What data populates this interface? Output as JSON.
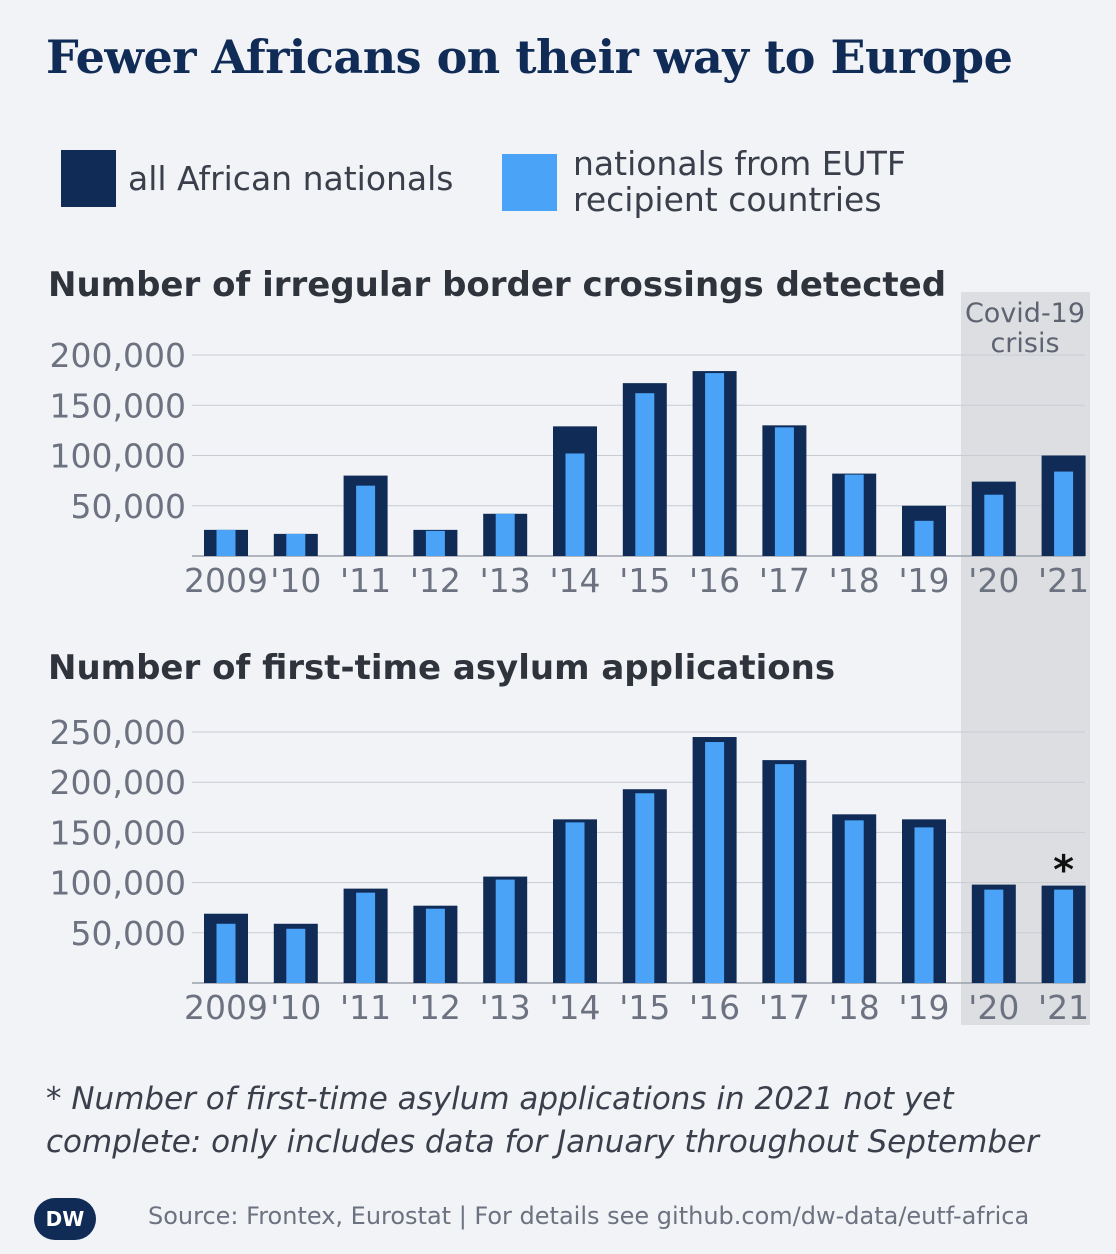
{
  "title": "Fewer Africans on their way to Europe",
  "colors": {
    "all": "#0f2b56",
    "eutf": "#4ba3f7",
    "covid_band": "#dcdee2",
    "grid": "#c8ccd3"
  },
  "legend": [
    {
      "label": "all African nationals",
      "color": "#0f2b56"
    },
    {
      "label": "nationals from EUTF\nrecipient countries",
      "color": "#4ba3f7"
    }
  ],
  "covid_label": [
    "Covid-19",
    "crisis"
  ],
  "chart_data": [
    {
      "type": "bar",
      "title": "Number of irregular border crossings detected",
      "categories": [
        "2009",
        "'10",
        "'11",
        "'12",
        "'13",
        "'14",
        "'15",
        "'16",
        "'17",
        "'18",
        "'19",
        "'20",
        "'21"
      ],
      "series": [
        {
          "name": "all African nationals",
          "values": [
            26000,
            22000,
            80000,
            26000,
            42000,
            129000,
            172000,
            184000,
            130000,
            82000,
            50000,
            74000,
            100000
          ]
        },
        {
          "name": "nationals from EUTF recipient countries",
          "values": [
            26000,
            22000,
            70000,
            25000,
            42000,
            102000,
            162000,
            182000,
            128000,
            81000,
            35000,
            61000,
            84000
          ]
        }
      ],
      "yticks": [
        50000,
        100000,
        150000,
        200000
      ],
      "ytick_labels": [
        "50,000",
        "100,000",
        "150,000",
        "200,000"
      ],
      "ylim": [
        0,
        200000
      ],
      "highlight": {
        "categories": [
          "'20",
          "'21"
        ],
        "label": "Covid-19 crisis"
      }
    },
    {
      "type": "bar",
      "title": "Number of first-time asylum applications",
      "categories": [
        "2009",
        "'10",
        "'11",
        "'12",
        "'13",
        "'14",
        "'15",
        "'16",
        "'17",
        "'18",
        "'19",
        "'20",
        "'21"
      ],
      "series": [
        {
          "name": "all African nationals",
          "values": [
            69000,
            59000,
            94000,
            77000,
            106000,
            163000,
            193000,
            245000,
            222000,
            168000,
            163000,
            98000,
            97000
          ]
        },
        {
          "name": "nationals from EUTF recipient countries",
          "values": [
            59000,
            54000,
            90000,
            74000,
            103000,
            160000,
            189000,
            240000,
            218000,
            162000,
            155000,
            93000,
            93000
          ]
        }
      ],
      "yticks": [
        50000,
        100000,
        150000,
        200000,
        250000
      ],
      "ytick_labels": [
        "50,000",
        "100,000",
        "150,000",
        "200,000",
        "250,000"
      ],
      "ylim": [
        0,
        250000
      ],
      "annotations": [
        {
          "category": "'21",
          "text": "*"
        }
      ]
    }
  ],
  "footnote": "* Number of first-time asylum applications in 2021 not yet complete: only includes data for January throughout September",
  "logo_text": "DW",
  "source": "Source: Frontex, Eurostat | For details see github.com/dw-data/eutf-africa"
}
